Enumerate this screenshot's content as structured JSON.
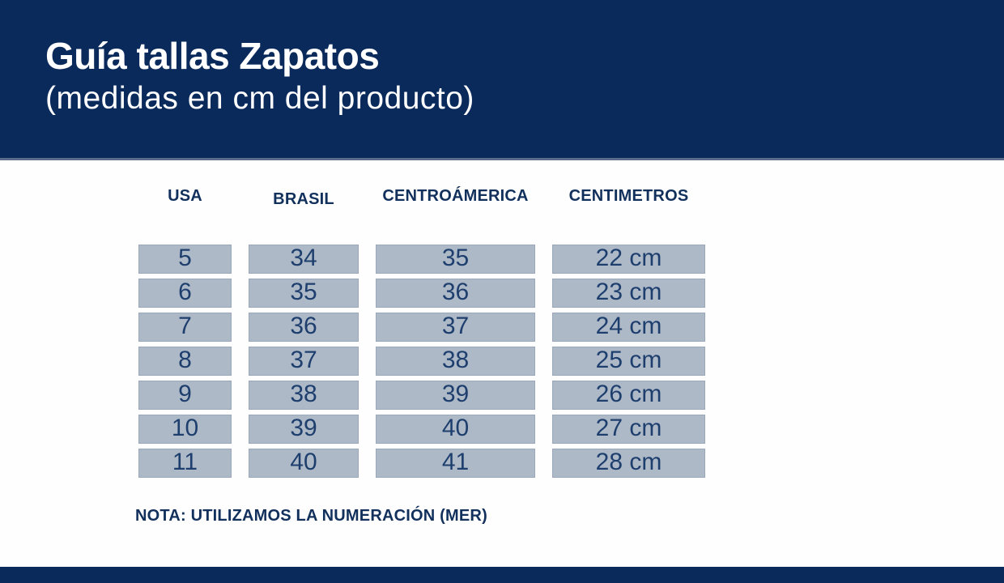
{
  "header": {
    "title": "Guía tallas Zapatos",
    "subtitle": "(medidas en cm del producto)"
  },
  "note": "NOTA: UTILIZAMOS LA NUMERACIÓN (MER)",
  "colors": {
    "header_navy": "#0a2a5b",
    "cell_bg": "#aeb9c8",
    "text_navy": "#12305c",
    "cell_text_navy": "#1e3f6e",
    "background": "#fefefe"
  },
  "chart_data": {
    "type": "table",
    "title": "Guía tallas Zapatos",
    "subtitle": "(medidas en cm del producto)",
    "columns": [
      "USA",
      "BRASIL",
      "CENTROÁMERICA",
      "CENTIMETROS"
    ],
    "rows": [
      [
        "5",
        "34",
        "35",
        "22 cm"
      ],
      [
        "6",
        "35",
        "36",
        "23 cm"
      ],
      [
        "7",
        "36",
        "37",
        "24 cm"
      ],
      [
        "8",
        "37",
        "38",
        "25 cm"
      ],
      [
        "9",
        "38",
        "39",
        "26 cm"
      ],
      [
        "10",
        "39",
        "40",
        "27 cm"
      ],
      [
        "11",
        "40",
        "41",
        "28 cm"
      ]
    ],
    "note": "NOTA: UTILIZAMOS LA NUMERACIÓN (MER)",
    "legend": "none",
    "grid": "off"
  }
}
